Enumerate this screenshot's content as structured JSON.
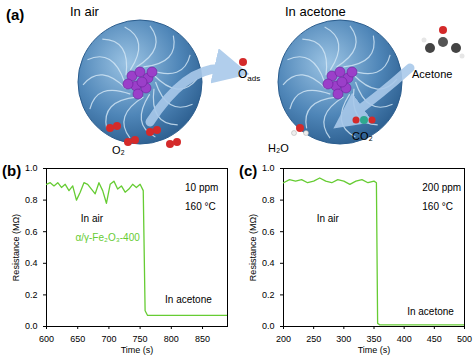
{
  "diagram": {
    "panel": "(a)",
    "left": {
      "title": "In air",
      "adsorbed": {
        "text": "O",
        "sub": "ads"
      },
      "gas": "O₂"
    },
    "right": {
      "title": "In acetone",
      "gas": "Acetone",
      "products": [
        "H₂O",
        "CO₂"
      ]
    }
  },
  "chart_data": [
    {
      "type": "line",
      "panel": "(b)",
      "x_label": "Time (s)",
      "y_label": "Resistance (MΩ)",
      "x": [
        600,
        606,
        612,
        618,
        624,
        630,
        636,
        642,
        648,
        654,
        660,
        666,
        672,
        678,
        684,
        690,
        696,
        702,
        708,
        714,
        720,
        726,
        732,
        738,
        744,
        750,
        755,
        758,
        762,
        890
      ],
      "series": [
        {
          "name": "α/γ-Fe₂O₃-400",
          "color": "#66cc33",
          "values": [
            0.9,
            0.91,
            0.89,
            0.91,
            0.88,
            0.9,
            0.86,
            0.89,
            0.8,
            0.85,
            0.91,
            0.9,
            0.87,
            0.84,
            0.91,
            0.86,
            0.78,
            0.9,
            0.92,
            0.87,
            0.89,
            0.85,
            0.87,
            0.9,
            0.88,
            0.9,
            0.86,
            0.1,
            0.07,
            0.07
          ]
        }
      ],
      "xlim": [
        600,
        890
      ],
      "xticks": [
        600,
        650,
        700,
        750,
        800,
        850
      ],
      "ylim": [
        0,
        1.0
      ],
      "yticks": [
        {
          "value": 0,
          "label": "0.0"
        },
        {
          "value": 0.2,
          "label": "0.2"
        },
        {
          "value": 0.4,
          "label": "0.4"
        },
        {
          "value": 0.6,
          "label": "0.6"
        },
        {
          "value": 0.8,
          "label": "0.8"
        },
        {
          "value": 1.0,
          "label": "1.0"
        }
      ],
      "annotations": [
        {
          "text": "10 ppm",
          "x": 822,
          "y": 0.88
        },
        {
          "text": "160 °C",
          "x": 822,
          "y": 0.76
        },
        {
          "text": "In air",
          "x": 655,
          "y": 0.68
        },
        {
          "text": "In acetone",
          "x": 790,
          "y": 0.17
        }
      ]
    },
    {
      "type": "line",
      "panel": "(c)",
      "x_label": "Time (s)",
      "y_label": "Resistance (MΩ)",
      "x": [
        200,
        210,
        220,
        230,
        240,
        250,
        260,
        270,
        280,
        290,
        300,
        310,
        320,
        330,
        340,
        350,
        354,
        356,
        360,
        500
      ],
      "series": [
        {
          "color": "#66cc33",
          "values": [
            0.91,
            0.93,
            0.92,
            0.93,
            0.91,
            0.92,
            0.94,
            0.92,
            0.91,
            0.93,
            0.92,
            0.9,
            0.92,
            0.93,
            0.91,
            0.92,
            0.91,
            0.02,
            0.01,
            0.01
          ]
        }
      ],
      "xlim": [
        200,
        500
      ],
      "xticks": [
        200,
        250,
        300,
        350,
        400,
        450,
        500
      ],
      "ylim": [
        0,
        1.0
      ],
      "yticks": [
        {
          "value": 0,
          "label": "0.0"
        },
        {
          "value": 0.2,
          "label": "0.2"
        },
        {
          "value": 0.4,
          "label": "0.4"
        },
        {
          "value": 0.6,
          "label": "0.6"
        },
        {
          "value": 0.8,
          "label": "0.8"
        },
        {
          "value": 1.0,
          "label": "1.0"
        }
      ],
      "annotations": [
        {
          "text": "200 ppm",
          "x": 430,
          "y": 0.88
        },
        {
          "text": "160 °C",
          "x": 430,
          "y": 0.76
        },
        {
          "text": "In air",
          "x": 255,
          "y": 0.68
        },
        {
          "text": "In acetone",
          "x": 405,
          "y": 0.09
        }
      ]
    }
  ]
}
